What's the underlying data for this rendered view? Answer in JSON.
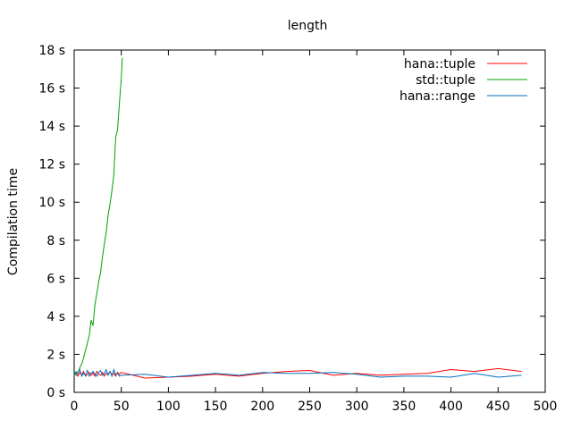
{
  "chart_data": {
    "type": "line",
    "title": "length",
    "xlabel": "",
    "ylabel": "Compilation time",
    "xlim": [
      0,
      500
    ],
    "ylim": [
      0,
      18
    ],
    "x_ticks": [
      0,
      50,
      100,
      150,
      200,
      250,
      300,
      350,
      400,
      450,
      500
    ],
    "y_ticks": [
      0,
      2,
      4,
      6,
      8,
      10,
      12,
      14,
      16,
      18
    ],
    "y_tick_labels": [
      "0 s",
      "2 s",
      "4 s",
      "6 s",
      "8 s",
      "10 s",
      "12 s",
      "14 s",
      "16 s",
      "18 s"
    ],
    "grid": false,
    "legend_position": "top-right",
    "series": [
      {
        "name": "hana::tuple",
        "color": "#ff0000",
        "x": [
          0,
          2,
          4,
          6,
          8,
          10,
          12,
          14,
          16,
          18,
          20,
          22,
          24,
          26,
          28,
          30,
          32,
          34,
          36,
          38,
          40,
          42,
          44,
          46,
          48,
          50,
          75,
          100,
          125,
          150,
          175,
          200,
          225,
          250,
          275,
          300,
          325,
          350,
          375,
          400,
          425,
          450,
          475
        ],
        "y": [
          0.95,
          1.0,
          0.85,
          1.05,
          0.9,
          1.1,
          0.85,
          0.95,
          1.05,
          0.9,
          1.0,
          0.85,
          1.1,
          0.95,
          0.9,
          1.05,
          0.85,
          1.0,
          0.95,
          1.1,
          0.9,
          1.0,
          0.85,
          1.05,
          0.95,
          1.05,
          0.75,
          0.8,
          0.85,
          0.95,
          0.85,
          1.0,
          1.1,
          1.15,
          0.9,
          1.0,
          0.9,
          0.95,
          1.0,
          1.2,
          1.1,
          1.25,
          1.1
        ]
      },
      {
        "name": "std::tuple",
        "color": "#00a000",
        "x": [
          0,
          2,
          4,
          6,
          8,
          10,
          12,
          14,
          16,
          18,
          20,
          22,
          24,
          26,
          28,
          30,
          32,
          34,
          36,
          38,
          40,
          42,
          44,
          46,
          48,
          50,
          51
        ],
        "y": [
          0.9,
          1.1,
          1.0,
          1.3,
          1.5,
          1.8,
          2.2,
          2.6,
          3.0,
          3.8,
          3.5,
          4.6,
          5.2,
          5.8,
          6.3,
          7.1,
          7.8,
          8.4,
          9.3,
          9.9,
          10.6,
          11.4,
          13.4,
          13.8,
          15.2,
          16.5,
          17.6
        ]
      },
      {
        "name": "hana::range",
        "color": "#0070c0",
        "x": [
          0,
          2,
          4,
          6,
          8,
          10,
          12,
          14,
          16,
          18,
          20,
          22,
          24,
          26,
          28,
          30,
          32,
          34,
          36,
          38,
          40,
          42,
          44,
          46,
          48,
          50,
          75,
          100,
          125,
          150,
          175,
          200,
          225,
          250,
          275,
          300,
          325,
          350,
          375,
          400,
          425,
          450,
          475
        ],
        "y": [
          1.1,
          0.9,
          1.05,
          1.2,
          0.85,
          1.0,
          0.9,
          1.15,
          0.85,
          1.0,
          1.1,
          0.95,
          0.85,
          1.05,
          1.15,
          0.9,
          1.0,
          1.2,
          0.9,
          1.1,
          0.85,
          1.2,
          0.95,
          1.0,
          0.85,
          0.9,
          0.95,
          0.8,
          0.9,
          1.0,
          0.9,
          1.05,
          1.0,
          1.0,
          1.05,
          0.95,
          0.8,
          0.85,
          0.85,
          0.8,
          1.0,
          0.8,
          0.9
        ]
      }
    ]
  }
}
